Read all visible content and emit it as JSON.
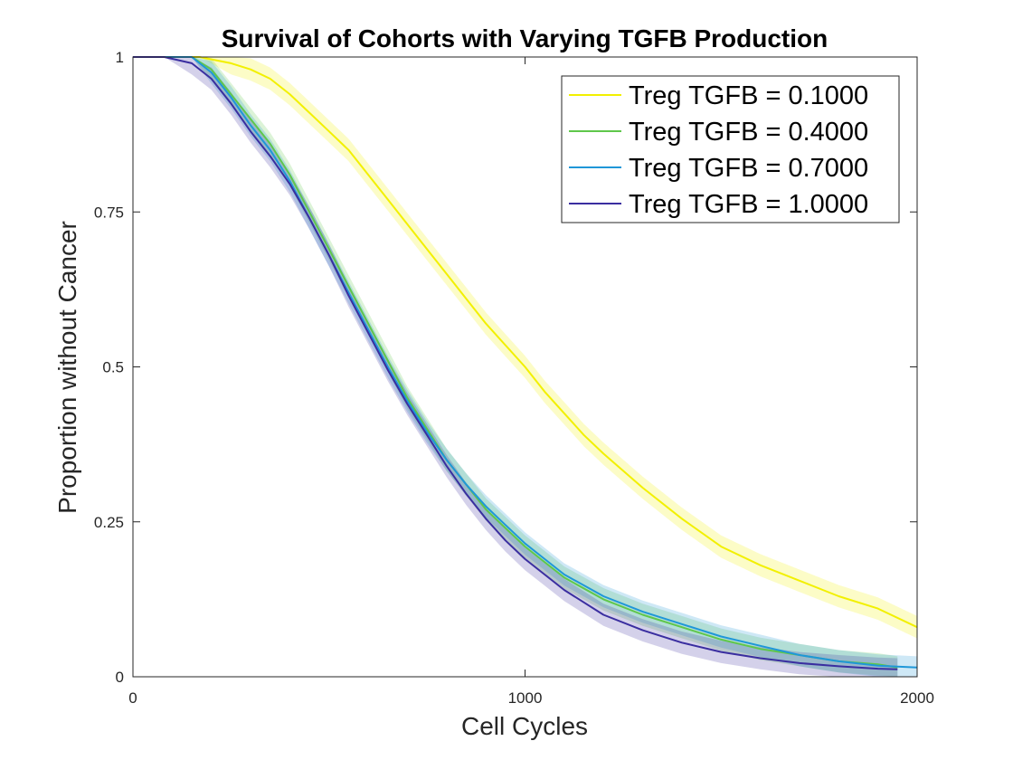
{
  "chart_data": {
    "type": "line",
    "title": "Survival of Cohorts with Varying TGFB Production",
    "xlabel": "Cell Cycles",
    "ylabel": "Proportion without Cancer",
    "xlim": [
      0,
      2000
    ],
    "ylim": [
      0,
      1
    ],
    "xticks": [
      0,
      1000,
      2000
    ],
    "xtick_labels": [
      "0",
      "1000",
      "2000"
    ],
    "yticks": [
      0,
      0.25,
      0.5,
      0.75,
      1
    ],
    "ytick_labels": [
      "0",
      "0.25",
      "0.5",
      "0.75",
      "1"
    ],
    "grid": false,
    "legend_position": "top-right",
    "confidence_bands": true,
    "series": [
      {
        "name": "Treg TGFB = 0.1000",
        "color": "#f2f000",
        "x": [
          0,
          100,
          170,
          250,
          300,
          350,
          400,
          450,
          500,
          550,
          600,
          650,
          700,
          750,
          800,
          850,
          900,
          950,
          1000,
          1050,
          1100,
          1150,
          1200,
          1300,
          1400,
          1500,
          1600,
          1700,
          1800,
          1900,
          2000
        ],
        "y": [
          1,
          1,
          1,
          0.99,
          0.98,
          0.965,
          0.94,
          0.91,
          0.88,
          0.85,
          0.81,
          0.77,
          0.73,
          0.69,
          0.65,
          0.61,
          0.57,
          0.535,
          0.5,
          0.46,
          0.425,
          0.39,
          0.36,
          0.305,
          0.255,
          0.21,
          0.18,
          0.155,
          0.13,
          0.11,
          0.08
        ]
      },
      {
        "name": "Treg TGFB = 0.4000",
        "color": "#5fc74b",
        "x": [
          0,
          80,
          150,
          200,
          250,
          300,
          350,
          400,
          450,
          500,
          550,
          600,
          650,
          700,
          750,
          800,
          850,
          900,
          950,
          1000,
          1050,
          1100,
          1200,
          1300,
          1400,
          1500,
          1600,
          1700,
          1800,
          1900,
          1950
        ],
        "y": [
          1,
          1,
          1,
          0.98,
          0.94,
          0.9,
          0.86,
          0.81,
          0.75,
          0.69,
          0.63,
          0.57,
          0.51,
          0.45,
          0.4,
          0.35,
          0.31,
          0.27,
          0.24,
          0.21,
          0.185,
          0.16,
          0.125,
          0.1,
          0.08,
          0.06,
          0.045,
          0.035,
          0.025,
          0.02,
          0.015
        ]
      },
      {
        "name": "Treg TGFB = 0.7000",
        "color": "#1f97d8",
        "x": [
          0,
          80,
          150,
          200,
          250,
          300,
          350,
          400,
          450,
          500,
          550,
          600,
          650,
          700,
          750,
          800,
          850,
          900,
          950,
          1000,
          1050,
          1100,
          1200,
          1300,
          1400,
          1500,
          1600,
          1700,
          1800,
          1900,
          2000
        ],
        "y": [
          1,
          1,
          1,
          0.975,
          0.935,
          0.89,
          0.85,
          0.8,
          0.74,
          0.68,
          0.62,
          0.56,
          0.5,
          0.445,
          0.395,
          0.35,
          0.31,
          0.275,
          0.245,
          0.215,
          0.19,
          0.165,
          0.13,
          0.105,
          0.085,
          0.065,
          0.05,
          0.035,
          0.025,
          0.018,
          0.015
        ]
      },
      {
        "name": "Treg TGFB = 1.0000",
        "color": "#3a2ea0",
        "x": [
          0,
          80,
          150,
          200,
          250,
          300,
          350,
          400,
          450,
          500,
          550,
          600,
          650,
          700,
          750,
          800,
          850,
          900,
          950,
          1000,
          1050,
          1100,
          1200,
          1300,
          1400,
          1500,
          1600,
          1700,
          1800,
          1900,
          1950
        ],
        "y": [
          1,
          1,
          0.99,
          0.965,
          0.925,
          0.88,
          0.84,
          0.795,
          0.74,
          0.68,
          0.615,
          0.555,
          0.495,
          0.44,
          0.39,
          0.34,
          0.295,
          0.255,
          0.22,
          0.19,
          0.165,
          0.14,
          0.1,
          0.075,
          0.055,
          0.04,
          0.03,
          0.022,
          0.017,
          0.013,
          0.012
        ]
      }
    ]
  }
}
